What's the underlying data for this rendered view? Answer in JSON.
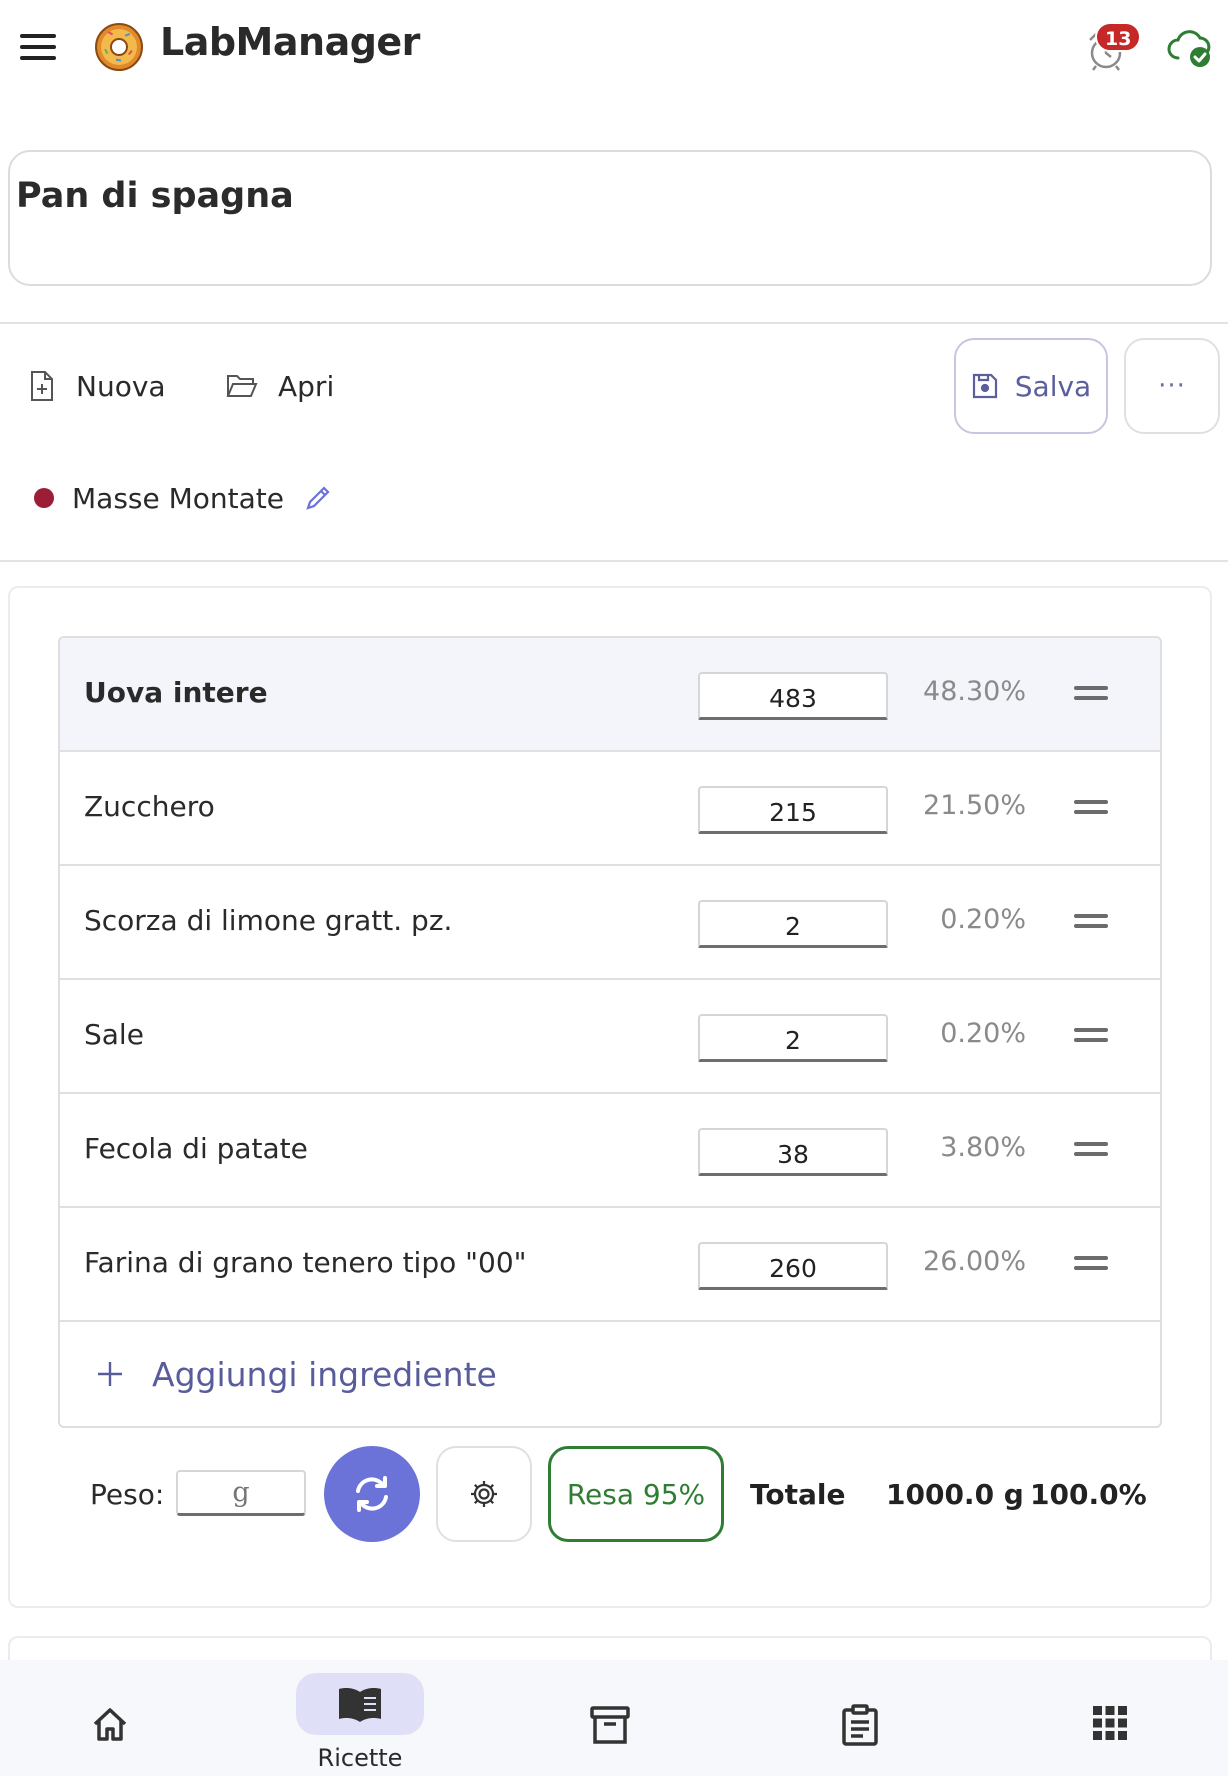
{
  "app": {
    "title": "LabManager",
    "notification_count": "13",
    "icons": {
      "menu": "menu-icon",
      "logo": "donut-logo",
      "alarm": "alarm-icon",
      "cloud": "cloud-check-icon"
    }
  },
  "recipe": {
    "name": "Pan di spagna"
  },
  "toolbar": {
    "new_label": "Nuova",
    "open_label": "Apri",
    "save_label": "Salva",
    "more_label": "···"
  },
  "category": {
    "label": "Masse Montate",
    "color": "#9c1e36"
  },
  "ingredients": [
    {
      "name": "Uova intere",
      "qty": "483",
      "pct": "48.30%"
    },
    {
      "name": "Zucchero",
      "qty": "215",
      "pct": "21.50%"
    },
    {
      "name": "Scorza di limone gratt. pz.",
      "qty": "2",
      "pct": "0.20%"
    },
    {
      "name": "Sale",
      "qty": "2",
      "pct": "0.20%"
    },
    {
      "name": "Fecola di patate",
      "qty": "38",
      "pct": "3.80%"
    },
    {
      "name": "Farina di grano tenero tipo \"00\"",
      "qty": "260",
      "pct": "26.00%"
    }
  ],
  "add_ingredient_label": "Aggiungi ingrediente",
  "footer": {
    "peso_label": "Peso:",
    "peso_placeholder": "g",
    "resa_label": "Resa 95%",
    "totale_label": "Totale",
    "totale_weight": "1000.0 g",
    "totale_pct": "100.0%"
  },
  "nav": {
    "items": [
      {
        "icon": "home-icon"
      },
      {
        "icon": "book-icon",
        "label": "Ricette",
        "active": true
      },
      {
        "icon": "archive-icon"
      },
      {
        "icon": "clipboard-icon"
      },
      {
        "icon": "apps-grid-icon"
      }
    ]
  },
  "colors": {
    "accent": "#6b73d8",
    "accent_text": "#585c9a",
    "success": "#2e7d32",
    "badge": "#c62828"
  }
}
